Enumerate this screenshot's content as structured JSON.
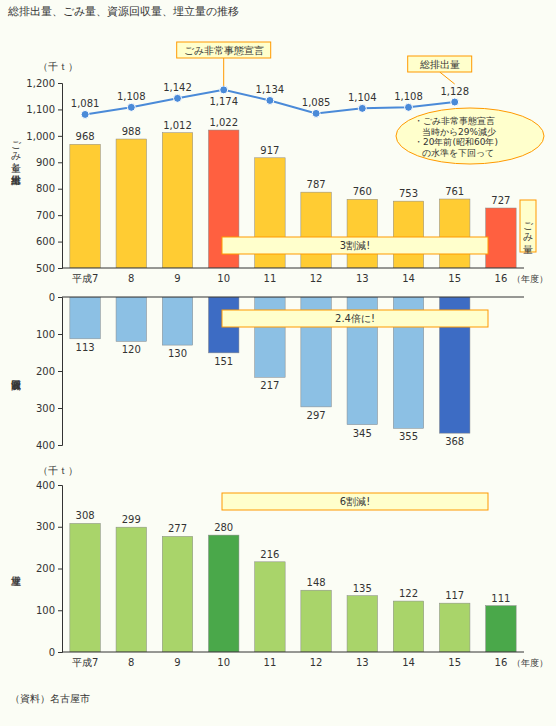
{
  "chart_data": [
    {
      "type": "bar",
      "title": "総排出量、ごみ量、資源回収量、埋立量の推移",
      "y_label": "ごみ量と総排出量",
      "y_unit": "（千ｔ）",
      "x_label": "（年度）",
      "categories": [
        "平成7",
        "8",
        "9",
        "10",
        "11",
        "12",
        "13",
        "14",
        "15",
        "16"
      ],
      "ylim": [
        500,
        1200
      ],
      "yticks": [
        500,
        600,
        700,
        800,
        900,
        {
          "value": 1000,
          "label": "1,000"
        },
        {
          "value": 1100,
          "label": "1,100"
        },
        {
          "value": 1200,
          "label": "1,200"
        }
      ],
      "data_labels": true,
      "series": [
        {
          "name": "ごみ量",
          "type": "bar",
          "colors": [
            "#ffcc33",
            "#ffcc33",
            "#ffcc33",
            "#ff6040",
            "#ffcc33",
            "#ffcc33",
            "#ffcc33",
            "#ffcc33",
            "#ffcc33",
            "#ff6040"
          ],
          "values": [
            968,
            988,
            1012,
            1022,
            917,
            787,
            760,
            753,
            761,
            727
          ],
          "value_labels": [
            "968",
            "988",
            "1,012",
            "1,022",
            "917",
            "787",
            "760",
            "753",
            "761",
            "727"
          ]
        },
        {
          "name": "総排出量",
          "type": "line",
          "color": "#4a8ad8",
          "marker": "circle",
          "values": [
            1081,
            1108,
            1142,
            1174,
            1134,
            1085,
            1104,
            1108,
            1128,
            null
          ],
          "value_labels": [
            "1,081",
            "1,108",
            "1,142",
            "1,174",
            "1,134",
            "1,085",
            "1,104",
            "1,108",
            "1,128",
            null
          ]
        }
      ],
      "annotations": [
        "ごみ非常事態宣言",
        "3割減!"
      ],
      "callout": [
        "・ごみ非常事態宣言",
        "当時から29%減少",
        "・20年前(昭和60年)",
        "の水準を下回って"
      ]
    },
    {
      "type": "bar",
      "y_label": "資源回収量",
      "ylim": [
        400,
        0
      ],
      "yticks": [
        0,
        100,
        200,
        300,
        400
      ],
      "tick_labels": "y",
      "data_labels": true,
      "colors": [
        "#8cc0e4",
        "#8cc0e4",
        "#8cc0e4",
        "#3d6cc4",
        "#8cc0e4",
        "#8cc0e4",
        "#8cc0e4",
        "#8cc0e4",
        "#3d6cc4",
        "#8cc0e4"
      ],
      "values": [
        113,
        120,
        130,
        151,
        217,
        297,
        345,
        355,
        368,
        null
      ],
      "annotations": [
        "2.4倍に!"
      ]
    },
    {
      "type": "bar",
      "y_label": "埋立量",
      "y_unit": "（千ｔ）",
      "x_label": "（年度）",
      "categories": [
        "平成7",
        "8",
        "9",
        "10",
        "11",
        "12",
        "13",
        "14",
        "15",
        "16"
      ],
      "ylim": [
        0,
        400
      ],
      "yticks": [
        0,
        100,
        200,
        300,
        400
      ],
      "data_labels": true,
      "colors": [
        "#a9d46a",
        "#a9d46a",
        "#a9d46a",
        "#4aa84a",
        "#a9d46a",
        "#a9d46a",
        "#a9d46a",
        "#a9d46a",
        "#a9d46a",
        "#4aa84a"
      ],
      "values": [
        308,
        299,
        277,
        280,
        216,
        148,
        135,
        122,
        117,
        111
      ],
      "annotations": [
        "6割減!"
      ],
      "source": "（資料）名古屋市"
    }
  ]
}
